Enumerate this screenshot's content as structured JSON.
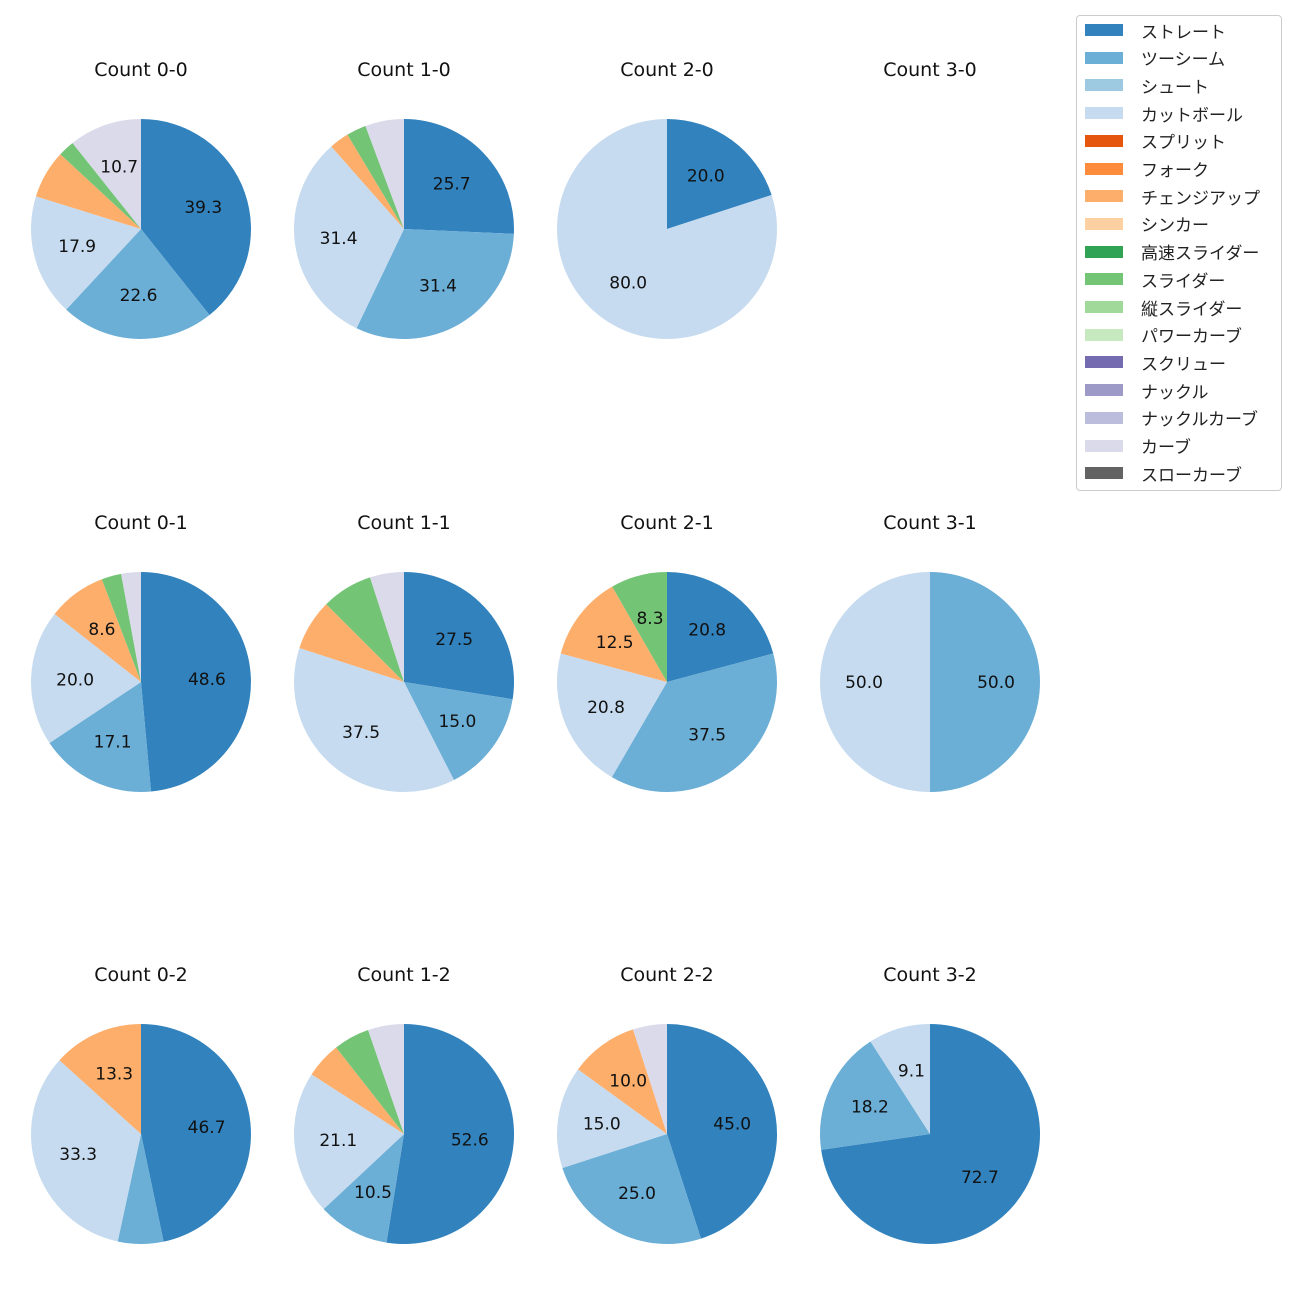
{
  "colors": {
    "ストレート": "#3182bd",
    "ツーシーム": "#6baed6",
    "シュート": "#9ecae1",
    "カットボール": "#c6dbef",
    "スプリット": "#e6550d",
    "フォーク": "#fd8d3c",
    "チェンジアップ": "#fdae6b",
    "シンカー": "#fdd0a2",
    "高速スライダー": "#31a354",
    "スライダー": "#74c476",
    "縦スライダー": "#a1d99b",
    "パワーカーブ": "#c7e9c0",
    "スクリュー": "#756bb1",
    "ナックル": "#9e9ac8",
    "ナックルカーブ": "#bcbddc",
    "カーブ": "#dadaeb",
    "スローカーブ": "#636363"
  },
  "legend": [
    "ストレート",
    "ツーシーム",
    "シュート",
    "カットボール",
    "スプリット",
    "フォーク",
    "チェンジアップ",
    "シンカー",
    "高速スライダー",
    "スライダー",
    "縦スライダー",
    "パワーカーブ",
    "スクリュー",
    "ナックル",
    "ナックルカーブ",
    "カーブ",
    "スローカーブ"
  ],
  "chart_data": [
    {
      "type": "pie",
      "title": "Count 0-0",
      "slices": [
        {
          "label": "ストレート",
          "value": 39.3
        },
        {
          "label": "ツーシーム",
          "value": 22.6
        },
        {
          "label": "カットボール",
          "value": 17.9
        },
        {
          "label": "チェンジアップ",
          "value": 7.1
        },
        {
          "label": "スライダー",
          "value": 2.4
        },
        {
          "label": "カーブ",
          "value": 10.7
        }
      ],
      "labeled": [
        39.3,
        22.6,
        17.9,
        10.7
      ]
    },
    {
      "type": "pie",
      "title": "Count 1-0",
      "slices": [
        {
          "label": "ストレート",
          "value": 25.7
        },
        {
          "label": "ツーシーム",
          "value": 31.4
        },
        {
          "label": "カットボール",
          "value": 31.4
        },
        {
          "label": "チェンジアップ",
          "value": 2.9
        },
        {
          "label": "スライダー",
          "value": 2.9
        },
        {
          "label": "カーブ",
          "value": 5.7
        }
      ],
      "labeled": [
        25.7,
        31.4,
        31.4
      ]
    },
    {
      "type": "pie",
      "title": "Count 2-0",
      "slices": [
        {
          "label": "ストレート",
          "value": 20.0
        },
        {
          "label": "カットボール",
          "value": 80.0
        }
      ],
      "labeled": [
        20.0,
        80.0
      ]
    },
    {
      "type": "pie",
      "title": "Count 3-0",
      "slices": [],
      "labeled": []
    },
    {
      "type": "pie",
      "title": "Count 0-1",
      "slices": [
        {
          "label": "ストレート",
          "value": 48.6
        },
        {
          "label": "ツーシーム",
          "value": 17.1
        },
        {
          "label": "カットボール",
          "value": 20.0
        },
        {
          "label": "チェンジアップ",
          "value": 8.6
        },
        {
          "label": "スライダー",
          "value": 2.9
        },
        {
          "label": "カーブ",
          "value": 2.9
        }
      ],
      "labeled": [
        48.6,
        17.1,
        20.0,
        8.6
      ]
    },
    {
      "type": "pie",
      "title": "Count 1-1",
      "slices": [
        {
          "label": "ストレート",
          "value": 27.5
        },
        {
          "label": "ツーシーム",
          "value": 15.0
        },
        {
          "label": "カットボール",
          "value": 37.5
        },
        {
          "label": "チェンジアップ",
          "value": 7.5
        },
        {
          "label": "スライダー",
          "value": 7.5
        },
        {
          "label": "カーブ",
          "value": 5.0
        }
      ],
      "labeled": [
        27.5,
        15.0,
        37.5
      ]
    },
    {
      "type": "pie",
      "title": "Count 2-1",
      "slices": [
        {
          "label": "ストレート",
          "value": 20.8
        },
        {
          "label": "ツーシーム",
          "value": 37.5
        },
        {
          "label": "カットボール",
          "value": 20.8
        },
        {
          "label": "チェンジアップ",
          "value": 12.5
        },
        {
          "label": "スライダー",
          "value": 8.3
        }
      ],
      "labeled": [
        20.8,
        37.5,
        20.8,
        12.5,
        8.3
      ]
    },
    {
      "type": "pie",
      "title": "Count 3-1",
      "slices": [
        {
          "label": "ツーシーム",
          "value": 50.0
        },
        {
          "label": "カットボール",
          "value": 50.0
        }
      ],
      "labeled": [
        50.0,
        50.0
      ]
    },
    {
      "type": "pie",
      "title": "Count 0-2",
      "slices": [
        {
          "label": "ストレート",
          "value": 46.7
        },
        {
          "label": "ツーシーム",
          "value": 6.7
        },
        {
          "label": "カットボール",
          "value": 33.3
        },
        {
          "label": "チェンジアップ",
          "value": 13.3
        }
      ],
      "labeled": [
        46.7,
        33.3,
        13.3
      ]
    },
    {
      "type": "pie",
      "title": "Count 1-2",
      "slices": [
        {
          "label": "ストレート",
          "value": 52.6
        },
        {
          "label": "ツーシーム",
          "value": 10.5
        },
        {
          "label": "カットボール",
          "value": 21.1
        },
        {
          "label": "チェンジアップ",
          "value": 5.3
        },
        {
          "label": "スライダー",
          "value": 5.3
        },
        {
          "label": "カーブ",
          "value": 5.3
        }
      ],
      "labeled": [
        52.6,
        10.5,
        21.1
      ]
    },
    {
      "type": "pie",
      "title": "Count 2-2",
      "slices": [
        {
          "label": "ストレート",
          "value": 45.0
        },
        {
          "label": "ツーシーム",
          "value": 25.0
        },
        {
          "label": "カットボール",
          "value": 15.0
        },
        {
          "label": "チェンジアップ",
          "value": 10.0
        },
        {
          "label": "カーブ",
          "value": 5.0
        }
      ],
      "labeled": [
        45.0,
        25.0,
        15.0,
        10.0
      ]
    },
    {
      "type": "pie",
      "title": "Count 3-2",
      "slices": [
        {
          "label": "ストレート",
          "value": 72.7
        },
        {
          "label": "ツーシーム",
          "value": 18.2
        },
        {
          "label": "カットボール",
          "value": 9.1
        }
      ],
      "labeled": [
        72.7,
        18.2,
        9.1
      ]
    }
  ]
}
